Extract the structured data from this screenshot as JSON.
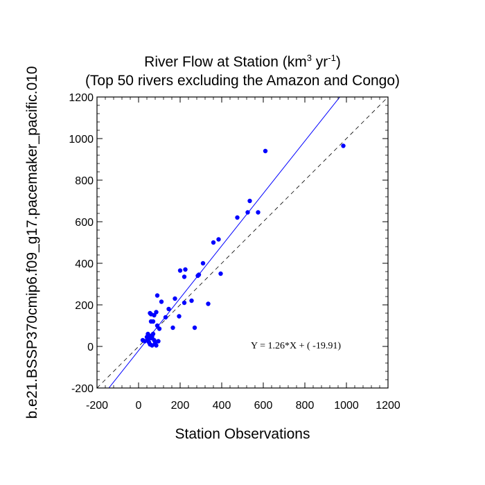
{
  "chart_data": {
    "type": "scatter",
    "title_line1_main": "River Flow at Station (km",
    "title_line1_sup1": "3",
    "title_line1_mid": " yr",
    "title_line1_sup2": "-1",
    "title_line1_end": ")",
    "title_line2": "(Top 50 rivers excluding the Amazon and Congo)",
    "xlabel": "Station Observations",
    "ylabel": "b.e21.BSSP370cmip6.f09_g17.pacemaker_pacific.010",
    "xlim": [
      -200,
      1200
    ],
    "ylim": [
      -200,
      1200
    ],
    "xticks": [
      -200,
      0,
      200,
      400,
      600,
      800,
      1000,
      1200
    ],
    "yticks": [
      -200,
      0,
      200,
      400,
      600,
      800,
      1000,
      1200
    ],
    "x_minor_step": 40,
    "y_minor_step": 40,
    "equation": "Y =  1.26*X + (  -19.91)",
    "regression": {
      "slope": 1.26,
      "intercept": -19.91
    },
    "points": [
      [
        985,
        965
      ],
      [
        610,
        940
      ],
      [
        535,
        700
      ],
      [
        575,
        645
      ],
      [
        525,
        645
      ],
      [
        475,
        620
      ],
      [
        385,
        515
      ],
      [
        360,
        500
      ],
      [
        310,
        400
      ],
      [
        395,
        350
      ],
      [
        290,
        345
      ],
      [
        285,
        340
      ],
      [
        200,
        365
      ],
      [
        225,
        370
      ],
      [
        220,
        335
      ],
      [
        335,
        205
      ],
      [
        255,
        220
      ],
      [
        220,
        210
      ],
      [
        195,
        145
      ],
      [
        175,
        230
      ],
      [
        145,
        180
      ],
      [
        130,
        140
      ],
      [
        110,
        215
      ],
      [
        90,
        245
      ],
      [
        85,
        165
      ],
      [
        75,
        150
      ],
      [
        70,
        120
      ],
      [
        60,
        120
      ],
      [
        60,
        155
      ],
      [
        55,
        160
      ],
      [
        90,
        100
      ],
      [
        100,
        85
      ],
      [
        165,
        90
      ],
      [
        270,
        90
      ],
      [
        40,
        45
      ],
      [
        45,
        30
      ],
      [
        50,
        20
      ],
      [
        55,
        50
      ],
      [
        60,
        40
      ],
      [
        65,
        45
      ],
      [
        70,
        60
      ],
      [
        75,
        30
      ],
      [
        80,
        15
      ],
      [
        85,
        5
      ],
      [
        95,
        25
      ],
      [
        65,
        5
      ],
      [
        30,
        25
      ],
      [
        20,
        30
      ],
      [
        55,
        10
      ],
      [
        45,
        60
      ]
    ],
    "colors": {
      "points": "#0000ff",
      "fit_line": "#0000ff",
      "ref_line": "#000000"
    }
  }
}
